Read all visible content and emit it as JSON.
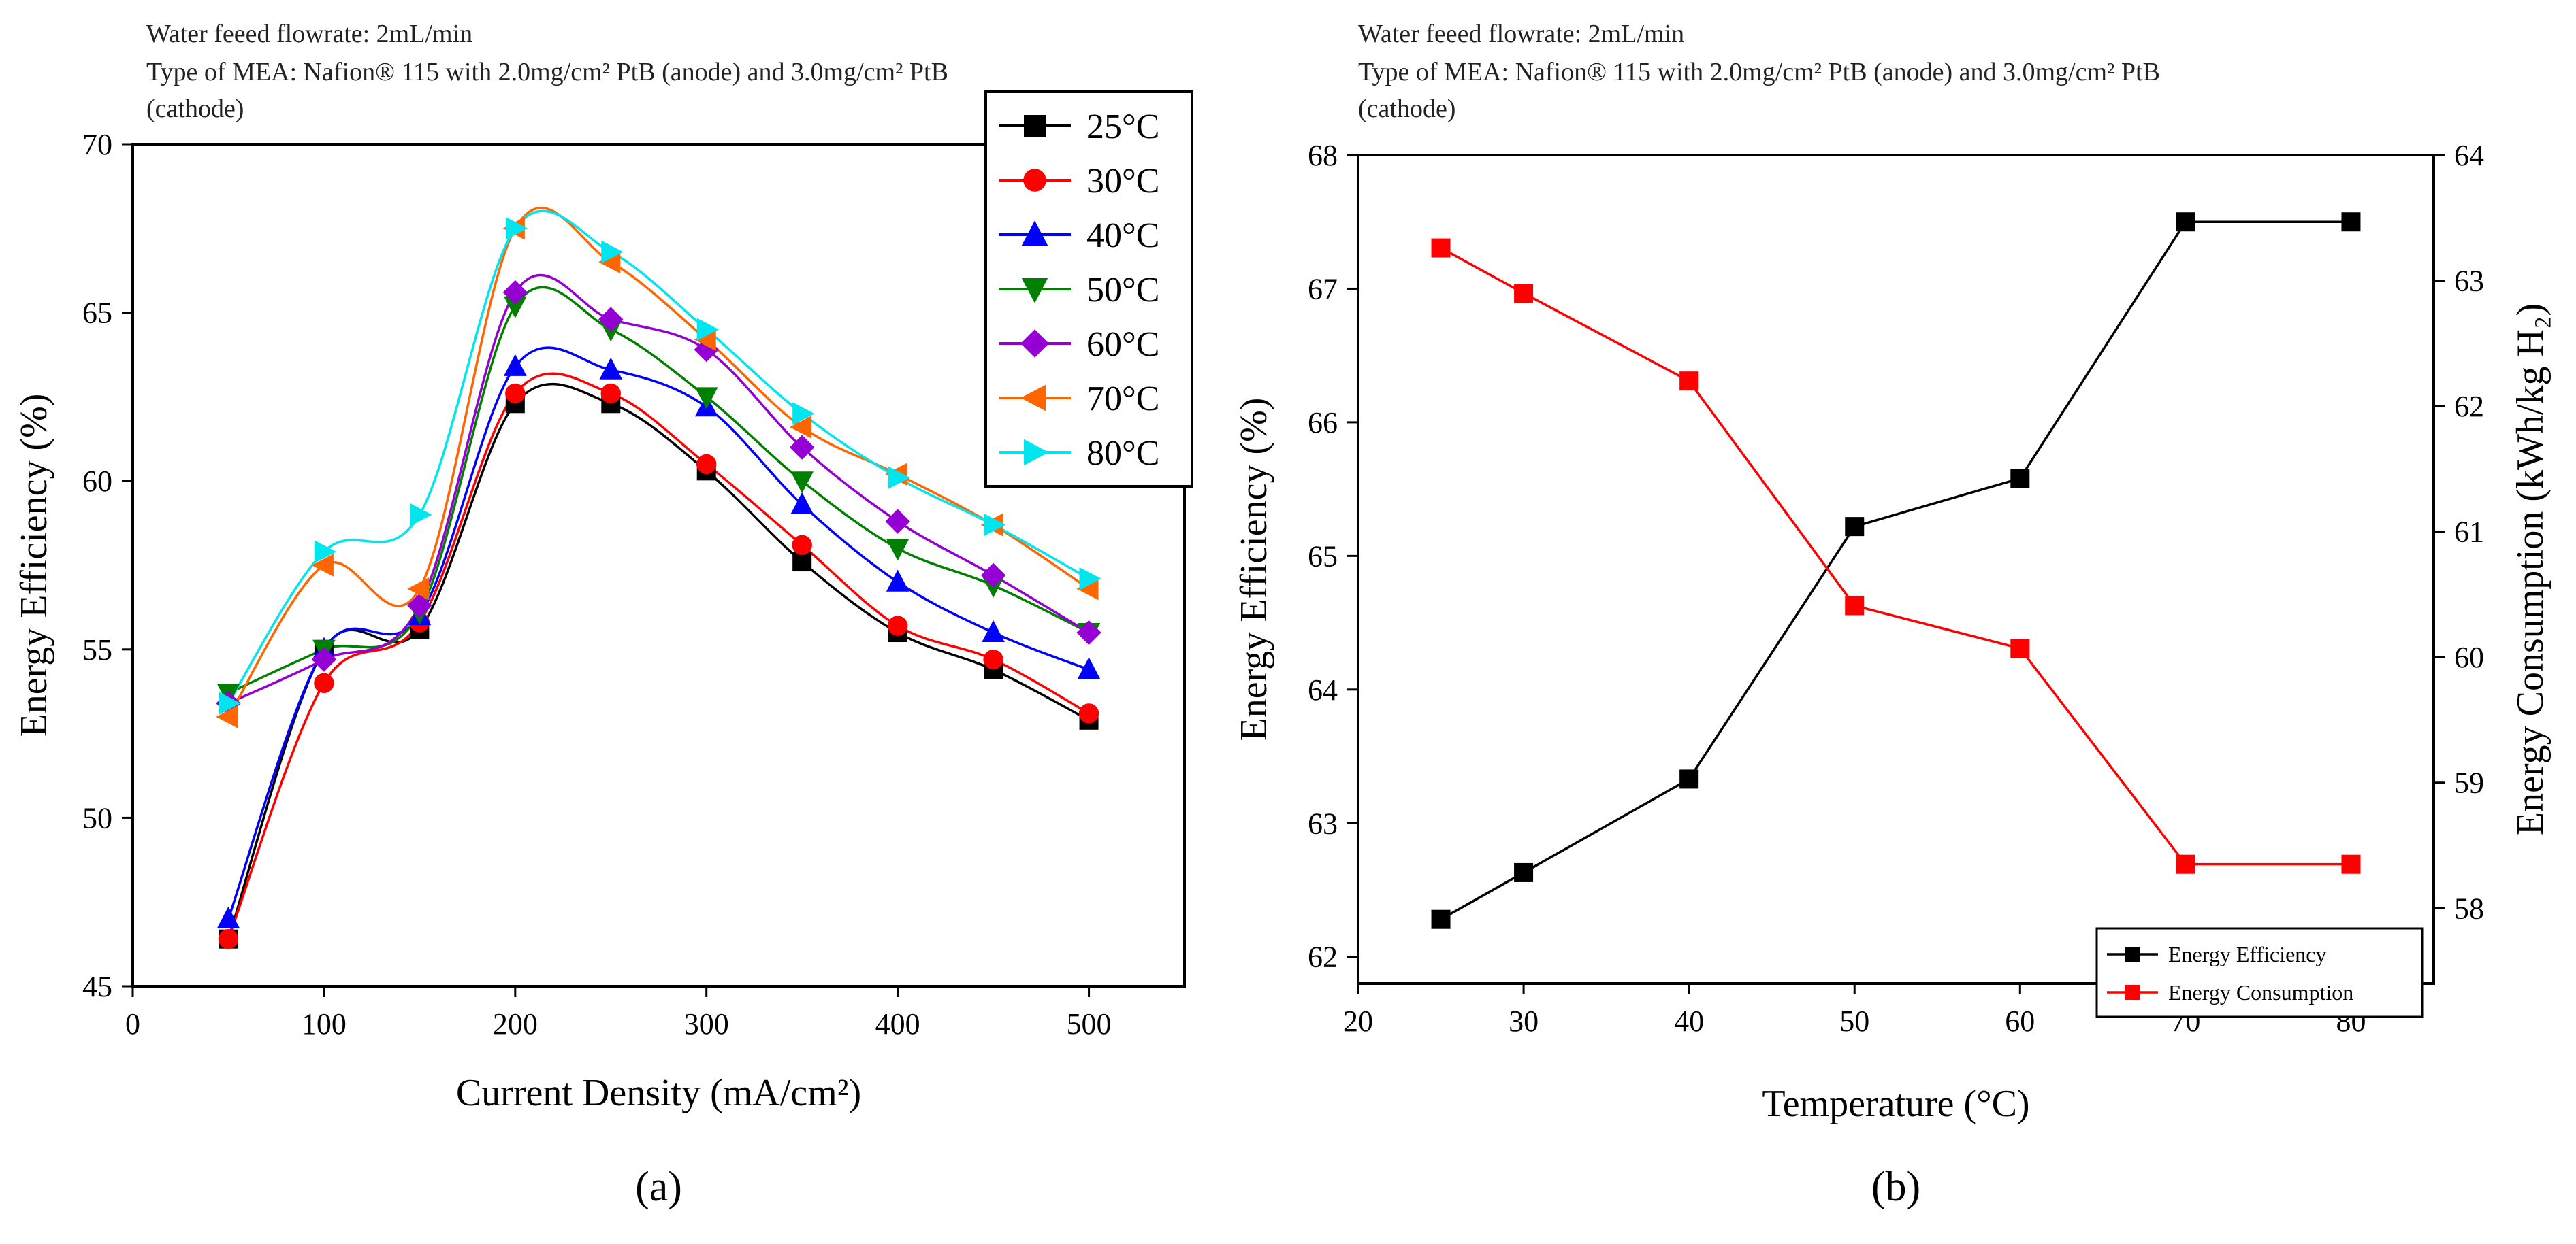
{
  "chart_data": [
    {
      "type": "line",
      "panel_label": "(a)",
      "notes": [
        "Water feeed flowrate: 2mL/min",
        "Type of MEA: Nafion® 115 with 2.0mg/cm² PtB (anode) and 3.0mg/cm² PtB",
        "(cathode)"
      ],
      "xlabel": "Current Density (mA/cm²)",
      "ylabel": "Energy Efficiency (%)",
      "xlim": [
        0,
        550
      ],
      "ylim": [
        45,
        70
      ],
      "xticks": [
        0,
        100,
        200,
        300,
        400,
        500
      ],
      "yticks": [
        45,
        50,
        55,
        60,
        65,
        70
      ],
      "legend_position": "top-right",
      "x": [
        50,
        100,
        150,
        200,
        250,
        300,
        350,
        400,
        450,
        500
      ],
      "series": [
        {
          "name": "25°C",
          "color": "#000000",
          "marker": "square",
          "values": [
            46.4,
            55.0,
            55.6,
            62.3,
            62.3,
            60.3,
            57.6,
            55.5,
            54.4,
            52.9
          ]
        },
        {
          "name": "30°C",
          "color": "#ff0000",
          "marker": "circle",
          "values": [
            46.4,
            54.0,
            55.8,
            62.6,
            62.6,
            60.5,
            58.1,
            55.7,
            54.7,
            53.1
          ]
        },
        {
          "name": "40°C",
          "color": "#0000ff",
          "marker": "triangle-up",
          "values": [
            47.0,
            55.0,
            56.0,
            63.4,
            63.3,
            62.2,
            59.3,
            57.0,
            55.5,
            54.4
          ]
        },
        {
          "name": "50°C",
          "color": "#008000",
          "marker": "triangle-down",
          "values": [
            53.7,
            55.0,
            56.1,
            65.2,
            64.5,
            62.5,
            60.0,
            58.0,
            56.9,
            55.5
          ]
        },
        {
          "name": "60°C",
          "color": "#9400d3",
          "marker": "diamond",
          "values": [
            53.4,
            54.7,
            56.3,
            65.6,
            64.8,
            63.9,
            61.0,
            58.8,
            57.2,
            55.5
          ]
        },
        {
          "name": "70°C",
          "color": "#ff6600",
          "marker": "triangle-left",
          "values": [
            53.0,
            57.5,
            56.8,
            67.5,
            66.5,
            64.2,
            61.6,
            60.2,
            58.7,
            56.8
          ]
        },
        {
          "name": "80°C",
          "color": "#00e5ee",
          "marker": "triangle-right",
          "values": [
            53.4,
            57.9,
            59.0,
            67.5,
            66.8,
            64.5,
            62.0,
            60.1,
            58.7,
            57.1
          ]
        }
      ]
    },
    {
      "type": "line",
      "panel_label": "(b)",
      "notes": [
        "Water feeed flowrate: 2mL/min",
        "Type of MEA: Nafion® 115 with 2.0mg/cm² PtB (anode) and 3.0mg/cm² PtB",
        "(cathode)"
      ],
      "xlabel": "Temperature (°C)",
      "ylabel": "Energy Efficiency (%)",
      "y2label": "Energy Consumption (kWh/kg H₂)",
      "xlim": [
        20,
        85
      ],
      "ylim": [
        61.8,
        68
      ],
      "y2lim": [
        57.4,
        64
      ],
      "xticks": [
        20,
        30,
        40,
        50,
        60,
        70,
        80
      ],
      "yticks": [
        62,
        63,
        64,
        65,
        66,
        67,
        68
      ],
      "y2ticks": [
        58,
        59,
        60,
        61,
        62,
        63,
        64
      ],
      "legend_position": "bottom-right",
      "x": [
        25,
        30,
        40,
        50,
        60,
        70,
        80
      ],
      "series": [
        {
          "name": "Energy Efficiency",
          "color": "#000000",
          "marker": "square",
          "axis": "left",
          "values": [
            62.28,
            62.63,
            63.33,
            65.22,
            65.58,
            67.5,
            67.5
          ]
        },
        {
          "name": "Energy Consumption",
          "color": "#ff0000",
          "marker": "square",
          "axis": "right",
          "values": [
            63.26,
            62.9,
            62.2,
            60.41,
            60.07,
            58.35,
            58.35
          ]
        }
      ]
    }
  ]
}
